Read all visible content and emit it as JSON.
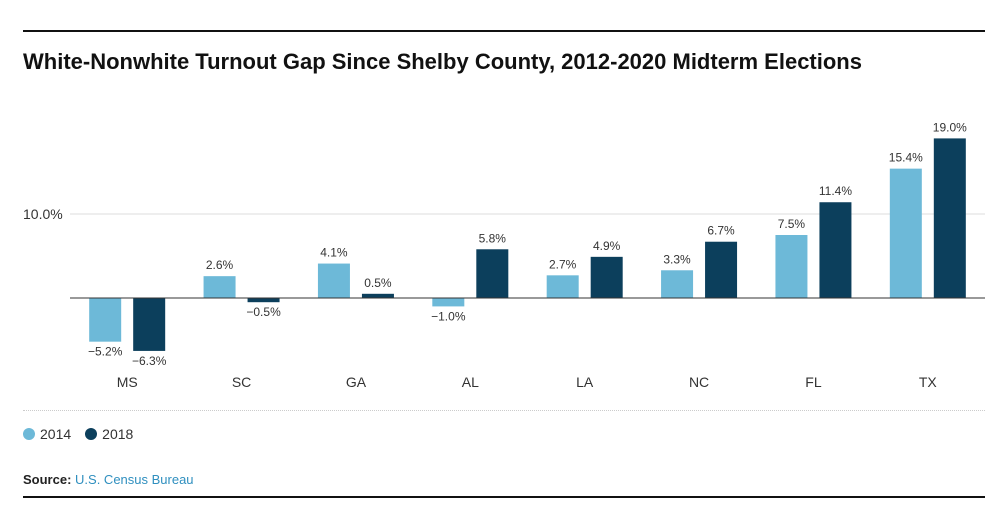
{
  "title": "White-Nonwhite Turnout Gap Since Shelby County, 2012-2020 Midterm Elections",
  "source": {
    "label": "Source:",
    "text": "U.S. Census Bureau"
  },
  "colors": {
    "2014": "#6db9d8",
    "2018": "#0c3f5c"
  },
  "chart_data": {
    "type": "bar",
    "categories": [
      "MS",
      "SC",
      "GA",
      "AL",
      "LA",
      "NC",
      "FL",
      "TX"
    ],
    "series": [
      {
        "name": "2014",
        "values": [
          -5.2,
          2.6,
          4.1,
          -1.0,
          2.7,
          3.3,
          7.5,
          15.4
        ],
        "labels": [
          "−5.2%",
          "2.6%",
          "4.1%",
          "−1.0%",
          "2.7%",
          "3.3%",
          "7.5%",
          "15.4%"
        ]
      },
      {
        "name": "2018",
        "values": [
          -6.3,
          -0.5,
          0.5,
          5.8,
          4.9,
          6.7,
          11.4,
          19.0
        ],
        "labels": [
          "−6.3%",
          "−0.5%",
          "0.5%",
          "5.8%",
          "4.9%",
          "6.7%",
          "11.4%",
          "19.0%"
        ]
      }
    ],
    "yticks": [
      {
        "value": 10,
        "label": "10.0%"
      }
    ],
    "ylim": [
      -6.3,
      19.0
    ],
    "grid": true,
    "legend": "bottom-left"
  }
}
